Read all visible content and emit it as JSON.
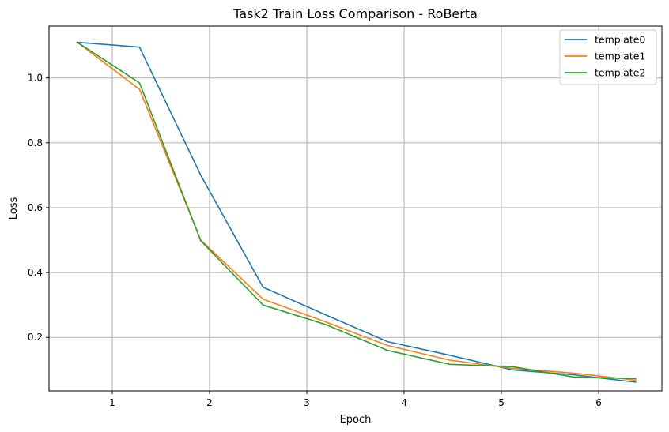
{
  "chart_data": {
    "type": "line",
    "title": "Task2 Train Loss Comparison - RoBerta",
    "xlabel": "Epoch",
    "ylabel": "Loss",
    "xlim": [
      0.35,
      6.65
    ],
    "ylim": [
      0.035,
      1.16
    ],
    "xticks": [
      1,
      2,
      3,
      4,
      5,
      6
    ],
    "xtick_labels": [
      "1",
      "2",
      "3",
      "4",
      "5",
      "6"
    ],
    "yticks": [
      0.2,
      0.4,
      0.6,
      0.8,
      1.0
    ],
    "ytick_labels": [
      "0.2",
      "0.4",
      "0.6",
      "0.8",
      "1.0"
    ],
    "grid": true,
    "legend_position": "top-right",
    "series": [
      {
        "name": "template0",
        "color": "#1f77b4",
        "x": [
          0.64,
          1.28,
          1.91,
          2.55,
          3.19,
          3.83,
          4.47,
          5.11,
          5.74,
          6.38
        ],
        "y": [
          1.11,
          1.095,
          0.7,
          0.355,
          0.27,
          0.187,
          0.145,
          0.1,
          0.085,
          0.062
        ]
      },
      {
        "name": "template1",
        "color": "#ff7f0e",
        "x": [
          0.64,
          1.28,
          1.91,
          2.55,
          3.19,
          3.83,
          4.47,
          5.11,
          5.74,
          6.38
        ],
        "y": [
          1.11,
          0.965,
          0.5,
          0.318,
          0.248,
          0.175,
          0.13,
          0.105,
          0.09,
          0.068
        ]
      },
      {
        "name": "template2",
        "color": "#2ca02c",
        "x": [
          0.64,
          1.28,
          1.91,
          2.55,
          3.19,
          3.83,
          4.47,
          5.11,
          5.74,
          6.38
        ],
        "y": [
          1.11,
          0.985,
          0.498,
          0.3,
          0.24,
          0.16,
          0.117,
          0.11,
          0.078,
          0.073
        ]
      }
    ]
  }
}
